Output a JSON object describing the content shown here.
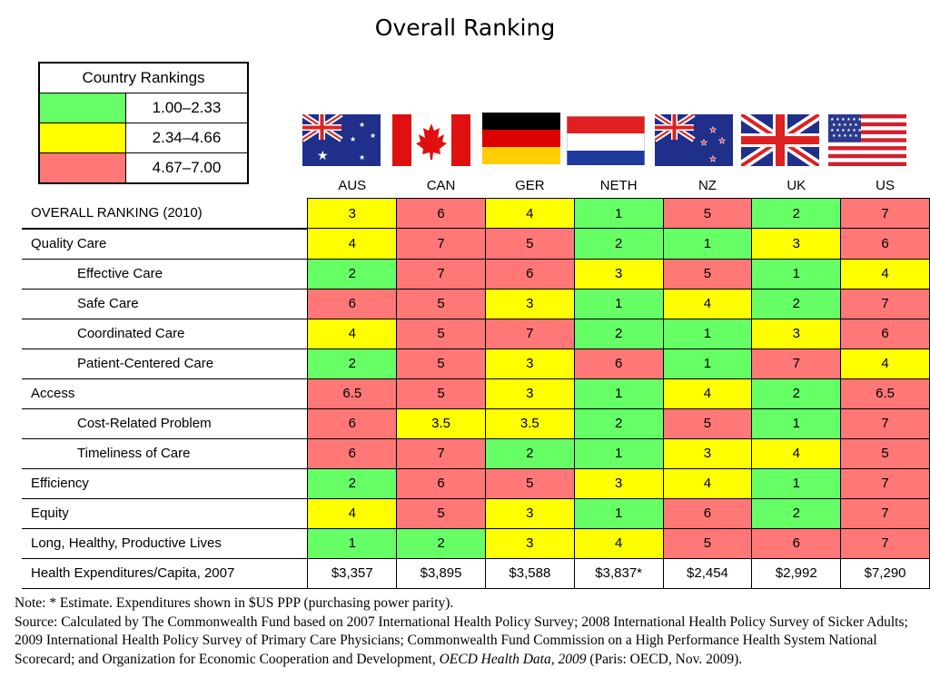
{
  "title": "Overall Ranking",
  "legend": {
    "heading": "Country Rankings",
    "rows": [
      {
        "range": "1.00–2.33",
        "color": "#66ff66"
      },
      {
        "range": "2.34–4.66",
        "color": "#ffff00"
      },
      {
        "range": "4.67–7.00",
        "color": "#ff7777"
      }
    ]
  },
  "colors": {
    "green": "#66ff66",
    "yellow": "#ffff00",
    "red": "#ff7777",
    "white": "#ffffff"
  },
  "countries": [
    {
      "code": "AUS",
      "flag": "australia-flag"
    },
    {
      "code": "CAN",
      "flag": "canada-flag"
    },
    {
      "code": "GER",
      "flag": "germany-flag"
    },
    {
      "code": "NETH",
      "flag": "netherlands-flag"
    },
    {
      "code": "NZ",
      "flag": "new-zealand-flag"
    },
    {
      "code": "UK",
      "flag": "uk-flag"
    },
    {
      "code": "US",
      "flag": "us-flag"
    }
  ],
  "rows": [
    {
      "label": "OVERALL RANKING (2010)",
      "indent": false,
      "values": [
        "3",
        "6",
        "4",
        "1",
        "5",
        "2",
        "7"
      ],
      "colors": [
        "yellow",
        "red",
        "yellow",
        "green",
        "red",
        "green",
        "red"
      ]
    },
    {
      "label": "Quality Care",
      "indent": false,
      "values": [
        "4",
        "7",
        "5",
        "2",
        "1",
        "3",
        "6"
      ],
      "colors": [
        "yellow",
        "red",
        "red",
        "green",
        "green",
        "yellow",
        "red"
      ]
    },
    {
      "label": "Effective Care",
      "indent": true,
      "values": [
        "2",
        "7",
        "6",
        "3",
        "5",
        "1",
        "4"
      ],
      "colors": [
        "green",
        "red",
        "red",
        "yellow",
        "red",
        "green",
        "yellow"
      ]
    },
    {
      "label": "Safe Care",
      "indent": true,
      "values": [
        "6",
        "5",
        "3",
        "1",
        "4",
        "2",
        "7"
      ],
      "colors": [
        "red",
        "red",
        "yellow",
        "green",
        "yellow",
        "green",
        "red"
      ]
    },
    {
      "label": "Coordinated Care",
      "indent": true,
      "values": [
        "4",
        "5",
        "7",
        "2",
        "1",
        "3",
        "6"
      ],
      "colors": [
        "yellow",
        "red",
        "red",
        "green",
        "green",
        "yellow",
        "red"
      ]
    },
    {
      "label": "Patient-Centered Care",
      "indent": true,
      "values": [
        "2",
        "5",
        "3",
        "6",
        "1",
        "7",
        "4"
      ],
      "colors": [
        "green",
        "red",
        "yellow",
        "red",
        "green",
        "red",
        "yellow"
      ]
    },
    {
      "label": "Access",
      "indent": false,
      "values": [
        "6.5",
        "5",
        "3",
        "1",
        "4",
        "2",
        "6.5"
      ],
      "colors": [
        "red",
        "red",
        "yellow",
        "green",
        "yellow",
        "green",
        "red"
      ]
    },
    {
      "label": "Cost-Related Problem",
      "indent": true,
      "values": [
        "6",
        "3.5",
        "3.5",
        "2",
        "5",
        "1",
        "7"
      ],
      "colors": [
        "red",
        "yellow",
        "yellow",
        "green",
        "red",
        "green",
        "red"
      ]
    },
    {
      "label": "Timeliness of Care",
      "indent": true,
      "values": [
        "6",
        "7",
        "2",
        "1",
        "3",
        "4",
        "5"
      ],
      "colors": [
        "red",
        "red",
        "green",
        "green",
        "yellow",
        "yellow",
        "red"
      ]
    },
    {
      "label": "Efficiency",
      "indent": false,
      "values": [
        "2",
        "6",
        "5",
        "3",
        "4",
        "1",
        "7"
      ],
      "colors": [
        "green",
        "red",
        "red",
        "yellow",
        "yellow",
        "green",
        "red"
      ]
    },
    {
      "label": "Equity",
      "indent": false,
      "values": [
        "4",
        "5",
        "3",
        "1",
        "6",
        "2",
        "7"
      ],
      "colors": [
        "yellow",
        "red",
        "yellow",
        "green",
        "red",
        "green",
        "red"
      ]
    },
    {
      "label": "Long, Healthy, Productive Lives",
      "indent": false,
      "values": [
        "1",
        "2",
        "3",
        "4",
        "5",
        "6",
        "7"
      ],
      "colors": [
        "green",
        "green",
        "yellow",
        "yellow",
        "red",
        "red",
        "red"
      ]
    },
    {
      "label": "Health Expenditures/Capita, 2007",
      "indent": false,
      "values": [
        "$3,357",
        "$3,895",
        "$3,588",
        "$3,837*",
        "$2,454",
        "$2,992",
        "$7,290"
      ],
      "colors": [
        "white",
        "white",
        "white",
        "white",
        "white",
        "white",
        "white"
      ]
    }
  ],
  "note": {
    "line1": "Note: * Estimate. Expenditures shown in $US PPP (purchasing power parity).",
    "source_pre": "Source: Calculated by The Commonwealth Fund based on 2007 International Health Policy Survey; 2008 International Health Policy Survey of Sicker Adults; 2009 International Health Policy Survey of Primary Care Physicians; Commonwealth Fund Commission on a High Performance Health System National Scorecard; and Organization for Economic Cooperation and Development, ",
    "source_italic": "OECD Health Data, 2009",
    "source_post": " (Paris: OECD, Nov. 2009)."
  }
}
